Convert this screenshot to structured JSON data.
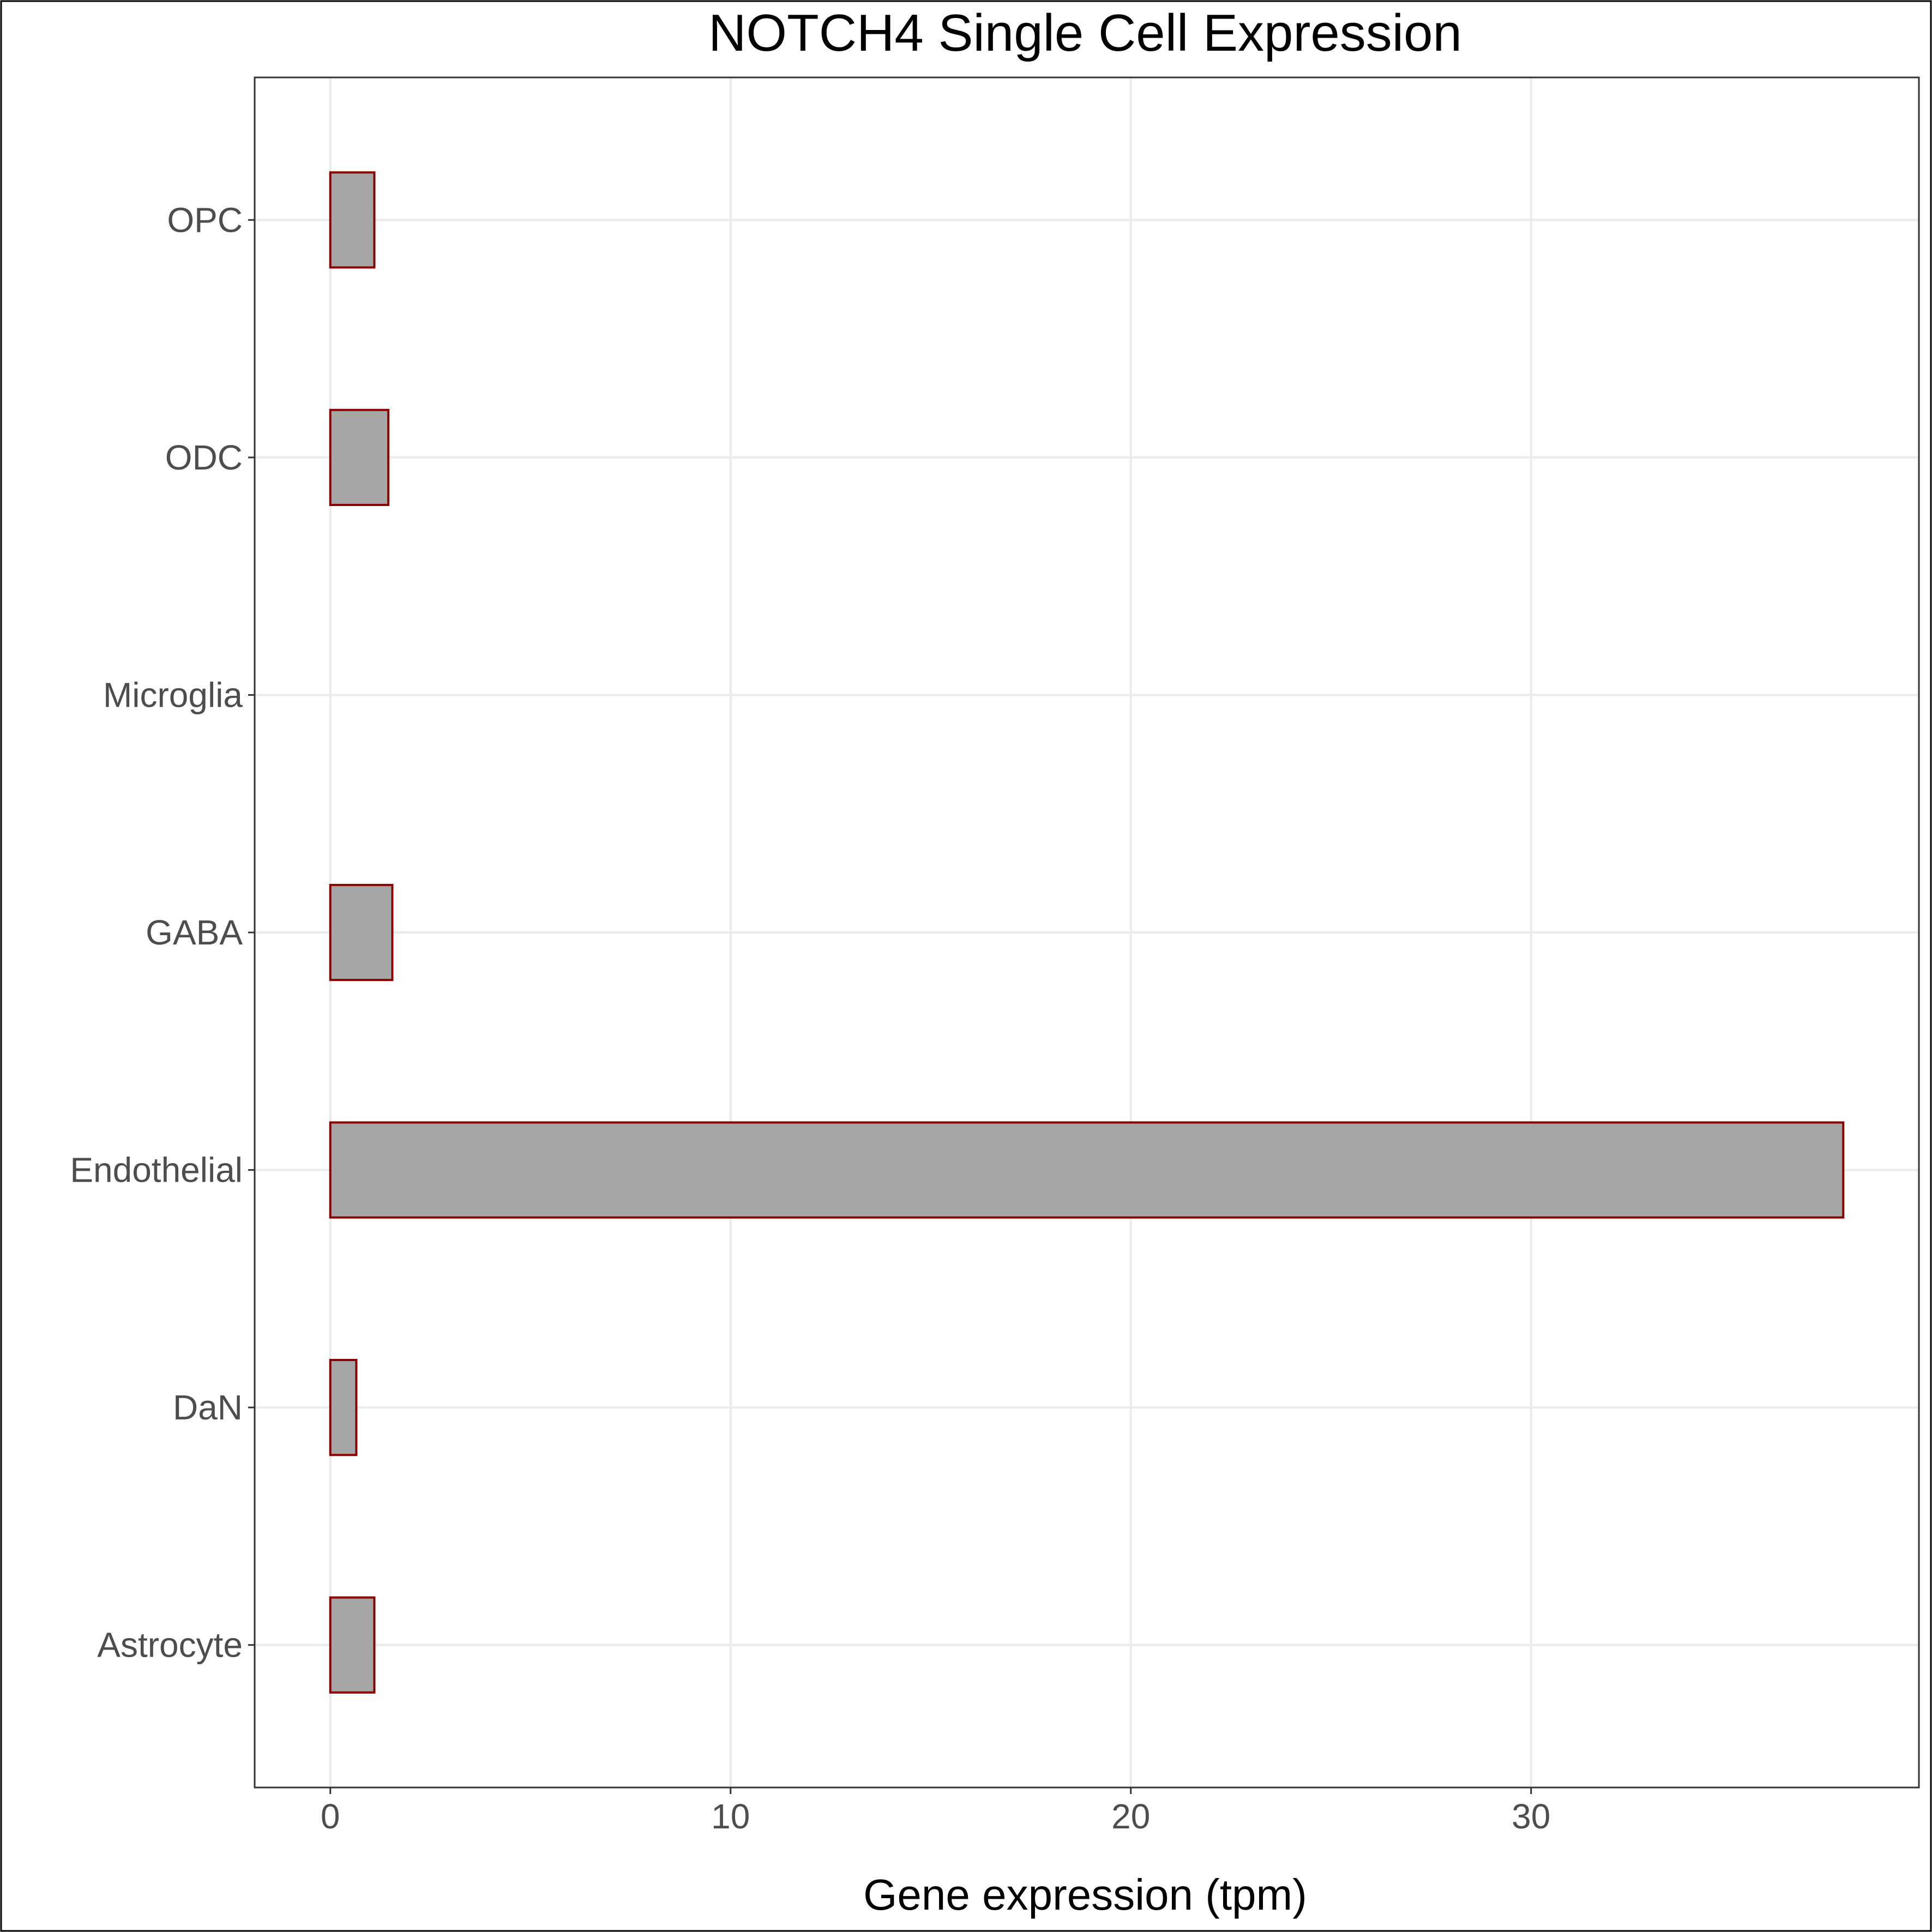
{
  "chart_data": {
    "type": "bar",
    "orientation": "horizontal",
    "title": "NOTCH4 Single Cell Expression",
    "xlabel": "Gene expression (tpm)",
    "ylabel": "",
    "categories": [
      "Astrocyte",
      "DaN",
      "Endothelial",
      "GABA",
      "Microglia",
      "ODC",
      "OPC"
    ],
    "values": [
      1.1,
      0.65,
      37.8,
      1.55,
      0.0,
      1.45,
      1.1
    ],
    "xlim": [
      -1.89,
      39.69
    ],
    "xticks": [
      0,
      10,
      20,
      30
    ],
    "xtick_labels": [
      "0",
      "10",
      "20",
      "30"
    ],
    "grid": true,
    "legend": "none",
    "colors": {
      "bar_fill": "#a6a6a6",
      "bar_outline": "#8b0000",
      "grid": "#ebebeb",
      "panel_border": "#333333",
      "tick_text": "#4d4d4d",
      "title_text": "#000000"
    }
  }
}
